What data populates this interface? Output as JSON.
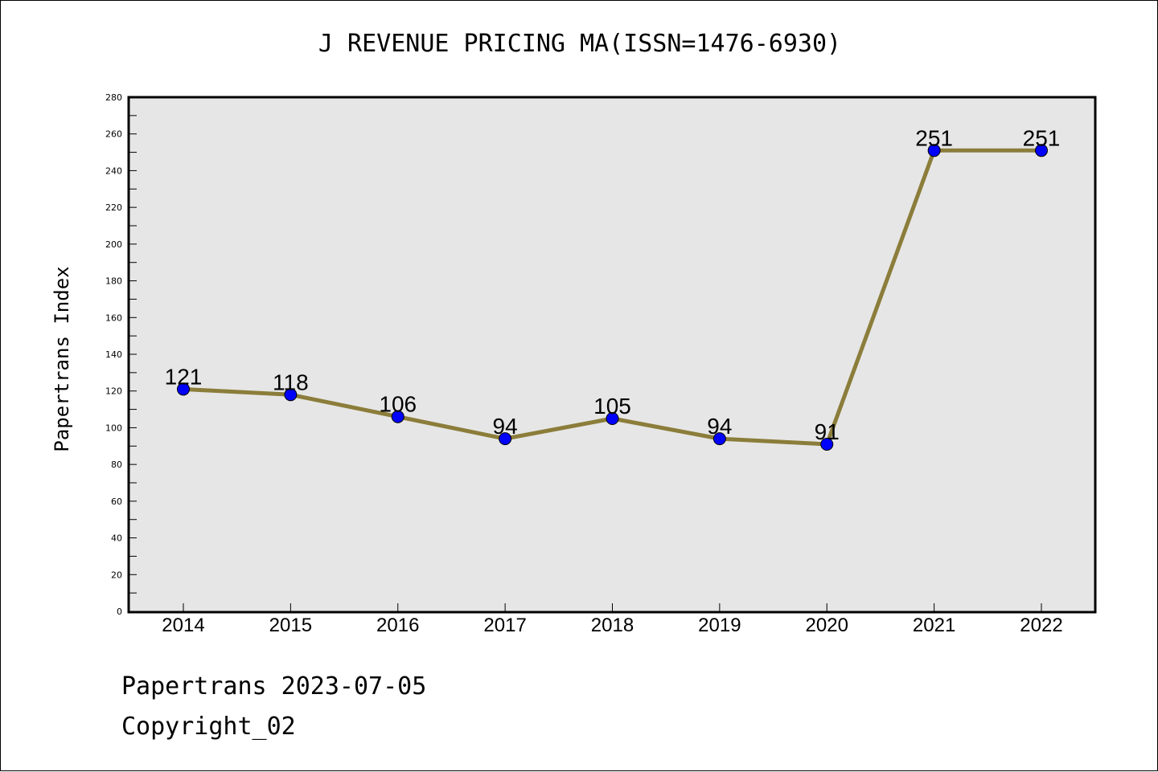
{
  "chart_data": {
    "type": "line",
    "title": "J REVENUE PRICING MA(ISSN=1476-6930)",
    "xlabel": "",
    "ylabel": "Papertrans Index",
    "categories": [
      "2014",
      "2015",
      "2016",
      "2017",
      "2018",
      "2019",
      "2020",
      "2021",
      "2022"
    ],
    "series": [
      {
        "values": [
          121,
          118,
          106,
          94,
          105,
          94,
          91,
          251,
          251
        ]
      }
    ],
    "data_labels": [
      "121",
      "118",
      "106",
      "94",
      "105",
      "94",
      "91",
      "251",
      "251"
    ],
    "ylim": [
      0,
      280
    ],
    "yticks": [
      0,
      20,
      40,
      60,
      80,
      100,
      120,
      140,
      160,
      180,
      200,
      220,
      240,
      260,
      280
    ],
    "grid": false,
    "colors": {
      "line": "#8b7d3a",
      "marker": "#0000ff",
      "plot_bg": "#e6e6e6"
    }
  },
  "footer": {
    "line1": "Papertrans 2023-07-05",
    "line2": "Copyright_02"
  }
}
